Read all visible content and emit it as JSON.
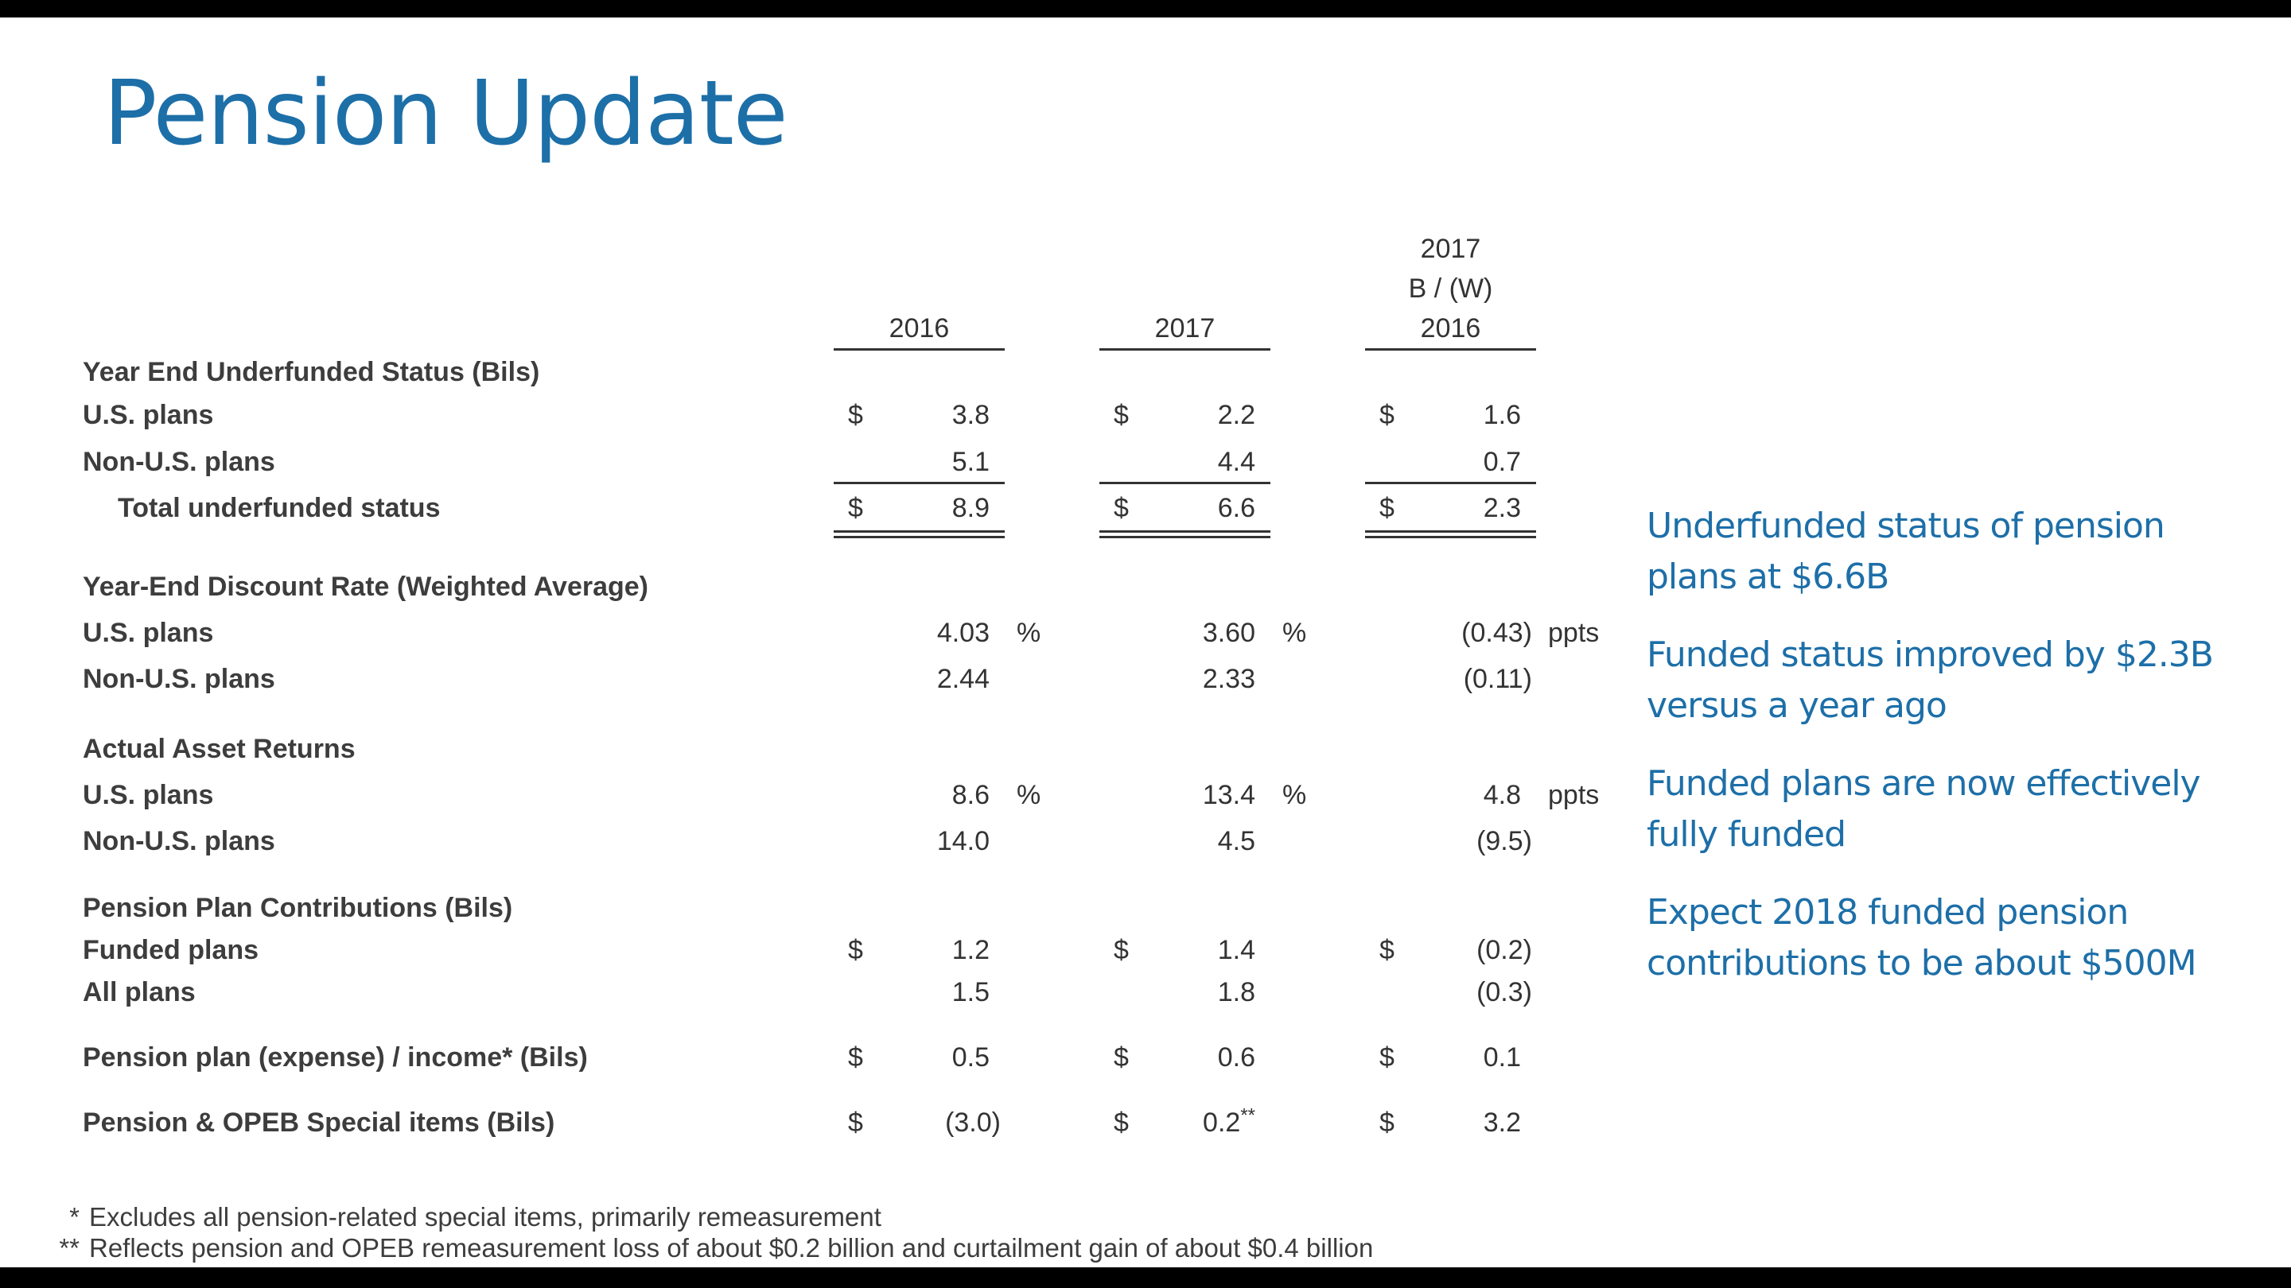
{
  "title": "Pension Update",
  "columns": {
    "c1": "2016",
    "c2": "2017",
    "c3_line1": "2017",
    "c3_line2": "B / (W)",
    "c3_line3": "2016"
  },
  "sections": {
    "underfunded": {
      "header": "Year End Underfunded Status (Bils)",
      "us": {
        "label": "U.S. plans",
        "dollar": "$",
        "v1": "3.8",
        "v2": "2.2",
        "v3": "1.6"
      },
      "nonus": {
        "label": "Non-U.S. plans",
        "v1": "5.1",
        "v2": "4.4",
        "v3": "0.7"
      },
      "total": {
        "label": "Total underfunded status",
        "dollar": "$",
        "v1": "8.9",
        "v2": "6.6",
        "v3": "2.3"
      }
    },
    "discount": {
      "header": "Year-End Discount Rate (Weighted Average)",
      "us": {
        "label": "U.S. plans",
        "v1": "4.03",
        "v2": "3.60",
        "v3": "(0.43)",
        "pct": "%",
        "ppts": "ppts"
      },
      "nonus": {
        "label": "Non-U.S. plans",
        "v1": "2.44",
        "v2": "2.33",
        "v3": "(0.11)"
      }
    },
    "returns": {
      "header": "Actual Asset Returns",
      "us": {
        "label": "U.S. plans",
        "v1": "8.6",
        "v2": "13.4",
        "v3": "4.8",
        "pct": "%",
        "ppts": "ppts"
      },
      "nonus": {
        "label": "Non-U.S. plans",
        "v1": "14.0",
        "v2": "4.5",
        "v3": "(9.5)"
      }
    },
    "contrib": {
      "header": "Pension Plan Contributions (Bils)",
      "funded": {
        "label": "Funded plans",
        "dollar": "$",
        "v1": "1.2",
        "v2": "1.4",
        "v3": "(0.2)"
      },
      "all": {
        "label": "All plans",
        "v1": "1.5",
        "v2": "1.8",
        "v3": "(0.3)"
      }
    },
    "expense": {
      "label": "Pension plan (expense) / income* (Bils)",
      "dollar": "$",
      "v1": "0.5",
      "v2": "0.6",
      "v3": "0.1"
    },
    "special": {
      "label": "Pension & OPEB Special items (Bils)",
      "dollar": "$",
      "v1": "(3.0)",
      "v2": "0.2",
      "v2_sup": "**",
      "v3": "3.2"
    }
  },
  "callouts": [
    "Underfunded status of pension plans at $6.6B",
    "Funded status improved by $2.3B versus a year ago",
    "Funded plans are now effectively fully funded",
    "Expect 2018 funded pension contributions to be about $500M"
  ],
  "footnotes": [
    {
      "mark": "*",
      "text": "Excludes all pension-related special items, primarily remeasurement"
    },
    {
      "mark": "**",
      "text": "Reflects pension and OPEB remeasurement loss of about $0.2 billion and curtailment gain of about $0.4 billion"
    }
  ],
  "colors": {
    "title": "#1d6fa8",
    "callout": "#1d6fa8",
    "bars": "#000000"
  }
}
